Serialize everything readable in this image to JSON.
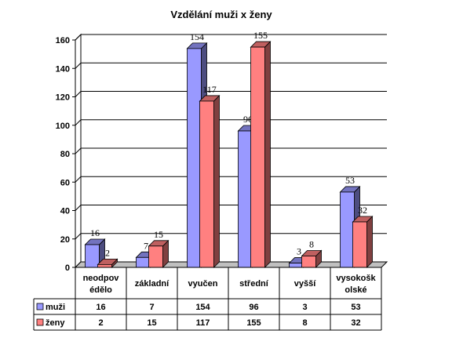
{
  "chart_data": {
    "type": "bar",
    "title": "Vzdělání muži x ženy",
    "categories": [
      [
        "neodpov",
        "édělo"
      ],
      [
        "základní"
      ],
      [
        "vyučen"
      ],
      [
        "střední"
      ],
      [
        "vyšší"
      ],
      [
        "vysokošk",
        "olské"
      ]
    ],
    "series": [
      {
        "name": "muži",
        "values": [
          16,
          7,
          154,
          96,
          3,
          53
        ],
        "color": "#9999ff"
      },
      {
        "name": "ženy",
        "values": [
          2,
          15,
          117,
          155,
          8,
          32
        ],
        "color": "#ff8080"
      }
    ],
    "ylim": [
      0,
      160
    ],
    "yticks": [
      0,
      20,
      40,
      60,
      80,
      100,
      120,
      140,
      160
    ],
    "grid": true,
    "legend": "data-table",
    "xlabel": "",
    "ylabel": ""
  }
}
